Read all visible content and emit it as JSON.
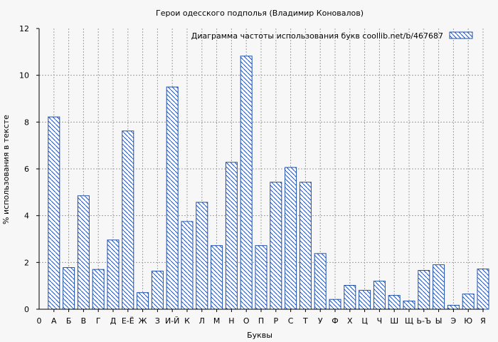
{
  "chart_data": {
    "type": "bar",
    "title": "Герои одесского подполья (Владимир Коновалов)",
    "xlabel": "Буквы",
    "ylabel": "% использования в тексте",
    "legend": {
      "label": "Диаграмма частоты использования букв  coollib.net/b/467687",
      "placement": "top-right"
    },
    "ylim": [
      0,
      12
    ],
    "yticks": [
      "0",
      "2",
      "4",
      "6",
      "8",
      "10",
      "12"
    ],
    "grid": true,
    "first_tick_label": "0",
    "categories": [
      "А",
      "Б",
      "В",
      "Г",
      "Д",
      "Е-Ё",
      "Ж",
      "З",
      "И-Й",
      "К",
      "Л",
      "М",
      "Н",
      "О",
      "П",
      "Р",
      "С",
      "Т",
      "У",
      "Ф",
      "Х",
      "Ц",
      "Ч",
      "Ш",
      "Щ",
      "Ь-Ъ",
      "Ы",
      "Э",
      "Ю",
      "Я"
    ],
    "values": [
      8.22,
      1.78,
      4.85,
      1.7,
      2.96,
      7.62,
      0.71,
      1.63,
      9.5,
      3.75,
      4.57,
      2.72,
      6.28,
      10.82,
      2.72,
      5.43,
      6.06,
      5.43,
      2.38,
      0.42,
      1.02,
      0.81,
      1.2,
      0.59,
      0.35,
      1.66,
      1.9,
      0.17,
      0.65,
      1.72
    ],
    "colors": {
      "bar_stroke": "#1f4fa8",
      "background": "#f7f7f7",
      "grid": "#a0a0a0"
    }
  }
}
